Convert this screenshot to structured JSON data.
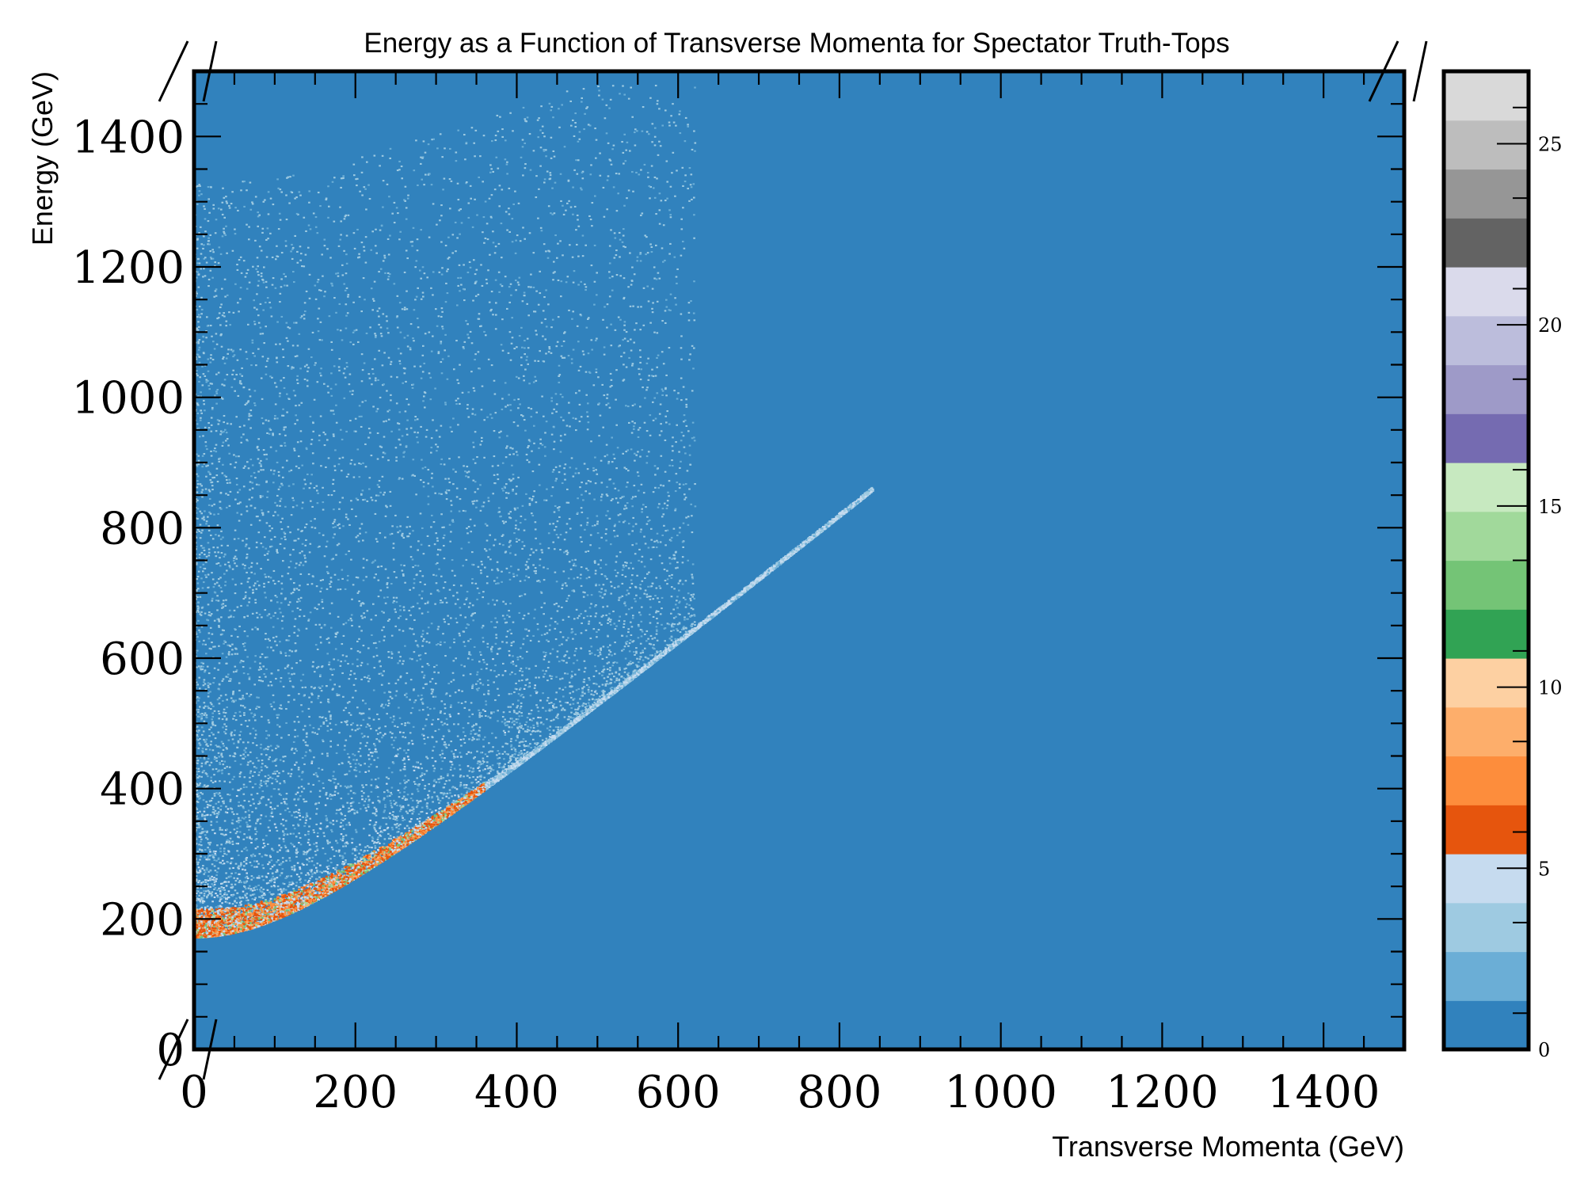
{
  "chart_data": {
    "type": "heatmap",
    "title": "Energy as a Function of Transverse Momenta for Spectator Truth-Tops",
    "xlabel": "Transverse Momenta (GeV)",
    "ylabel": "Energy (GeV)",
    "xlim": [
      0,
      1500
    ],
    "ylim": [
      0,
      1500
    ],
    "x_ticks": [
      0,
      200,
      400,
      600,
      800,
      1000,
      1200,
      1400
    ],
    "y_ticks": [
      0,
      200,
      400,
      600,
      800,
      1000,
      1200,
      1400
    ],
    "x_tick_labels": [
      "0",
      "200",
      "400",
      "600",
      "800",
      "1000",
      "1200",
      "1400"
    ],
    "y_tick_labels": [
      "0",
      "200",
      "400",
      "600",
      "800",
      "1000",
      "1200",
      "1400"
    ],
    "background_color": "#3182bd",
    "kinematic_edge_mass_gev": 173,
    "density_notes": [
      {
        "region": "edge E = sqrt(pT^2 + 173^2)",
        "pt_range": [
          0,
          350
        ],
        "count_level": "7-12"
      },
      {
        "region": "edge E = sqrt(pT^2 + 173^2)",
        "pt_range": [
          350,
          830
        ],
        "count_level": "2-4"
      },
      {
        "region": "above edge",
        "pt_range": [
          0,
          600
        ],
        "count_level": "1-5"
      }
    ],
    "colorbar": {
      "min": 0,
      "max": 27,
      "ticks": [
        0,
        5,
        10,
        15,
        20,
        25
      ],
      "tick_labels": [
        "0",
        "5",
        "10",
        "15",
        "20",
        "25"
      ],
      "colors": [
        "#3182bd",
        "#6baed6",
        "#9ecae1",
        "#c6dbef",
        "#e6550d",
        "#fd8d3c",
        "#fdae6b",
        "#fdd0a2",
        "#31a354",
        "#74c476",
        "#a1d99b",
        "#c7e9c0",
        "#756bb1",
        "#9e9ac8",
        "#bcbddc",
        "#dadaeb",
        "#636363",
        "#969696",
        "#bdbdbd",
        "#d9d9d9"
      ]
    }
  }
}
